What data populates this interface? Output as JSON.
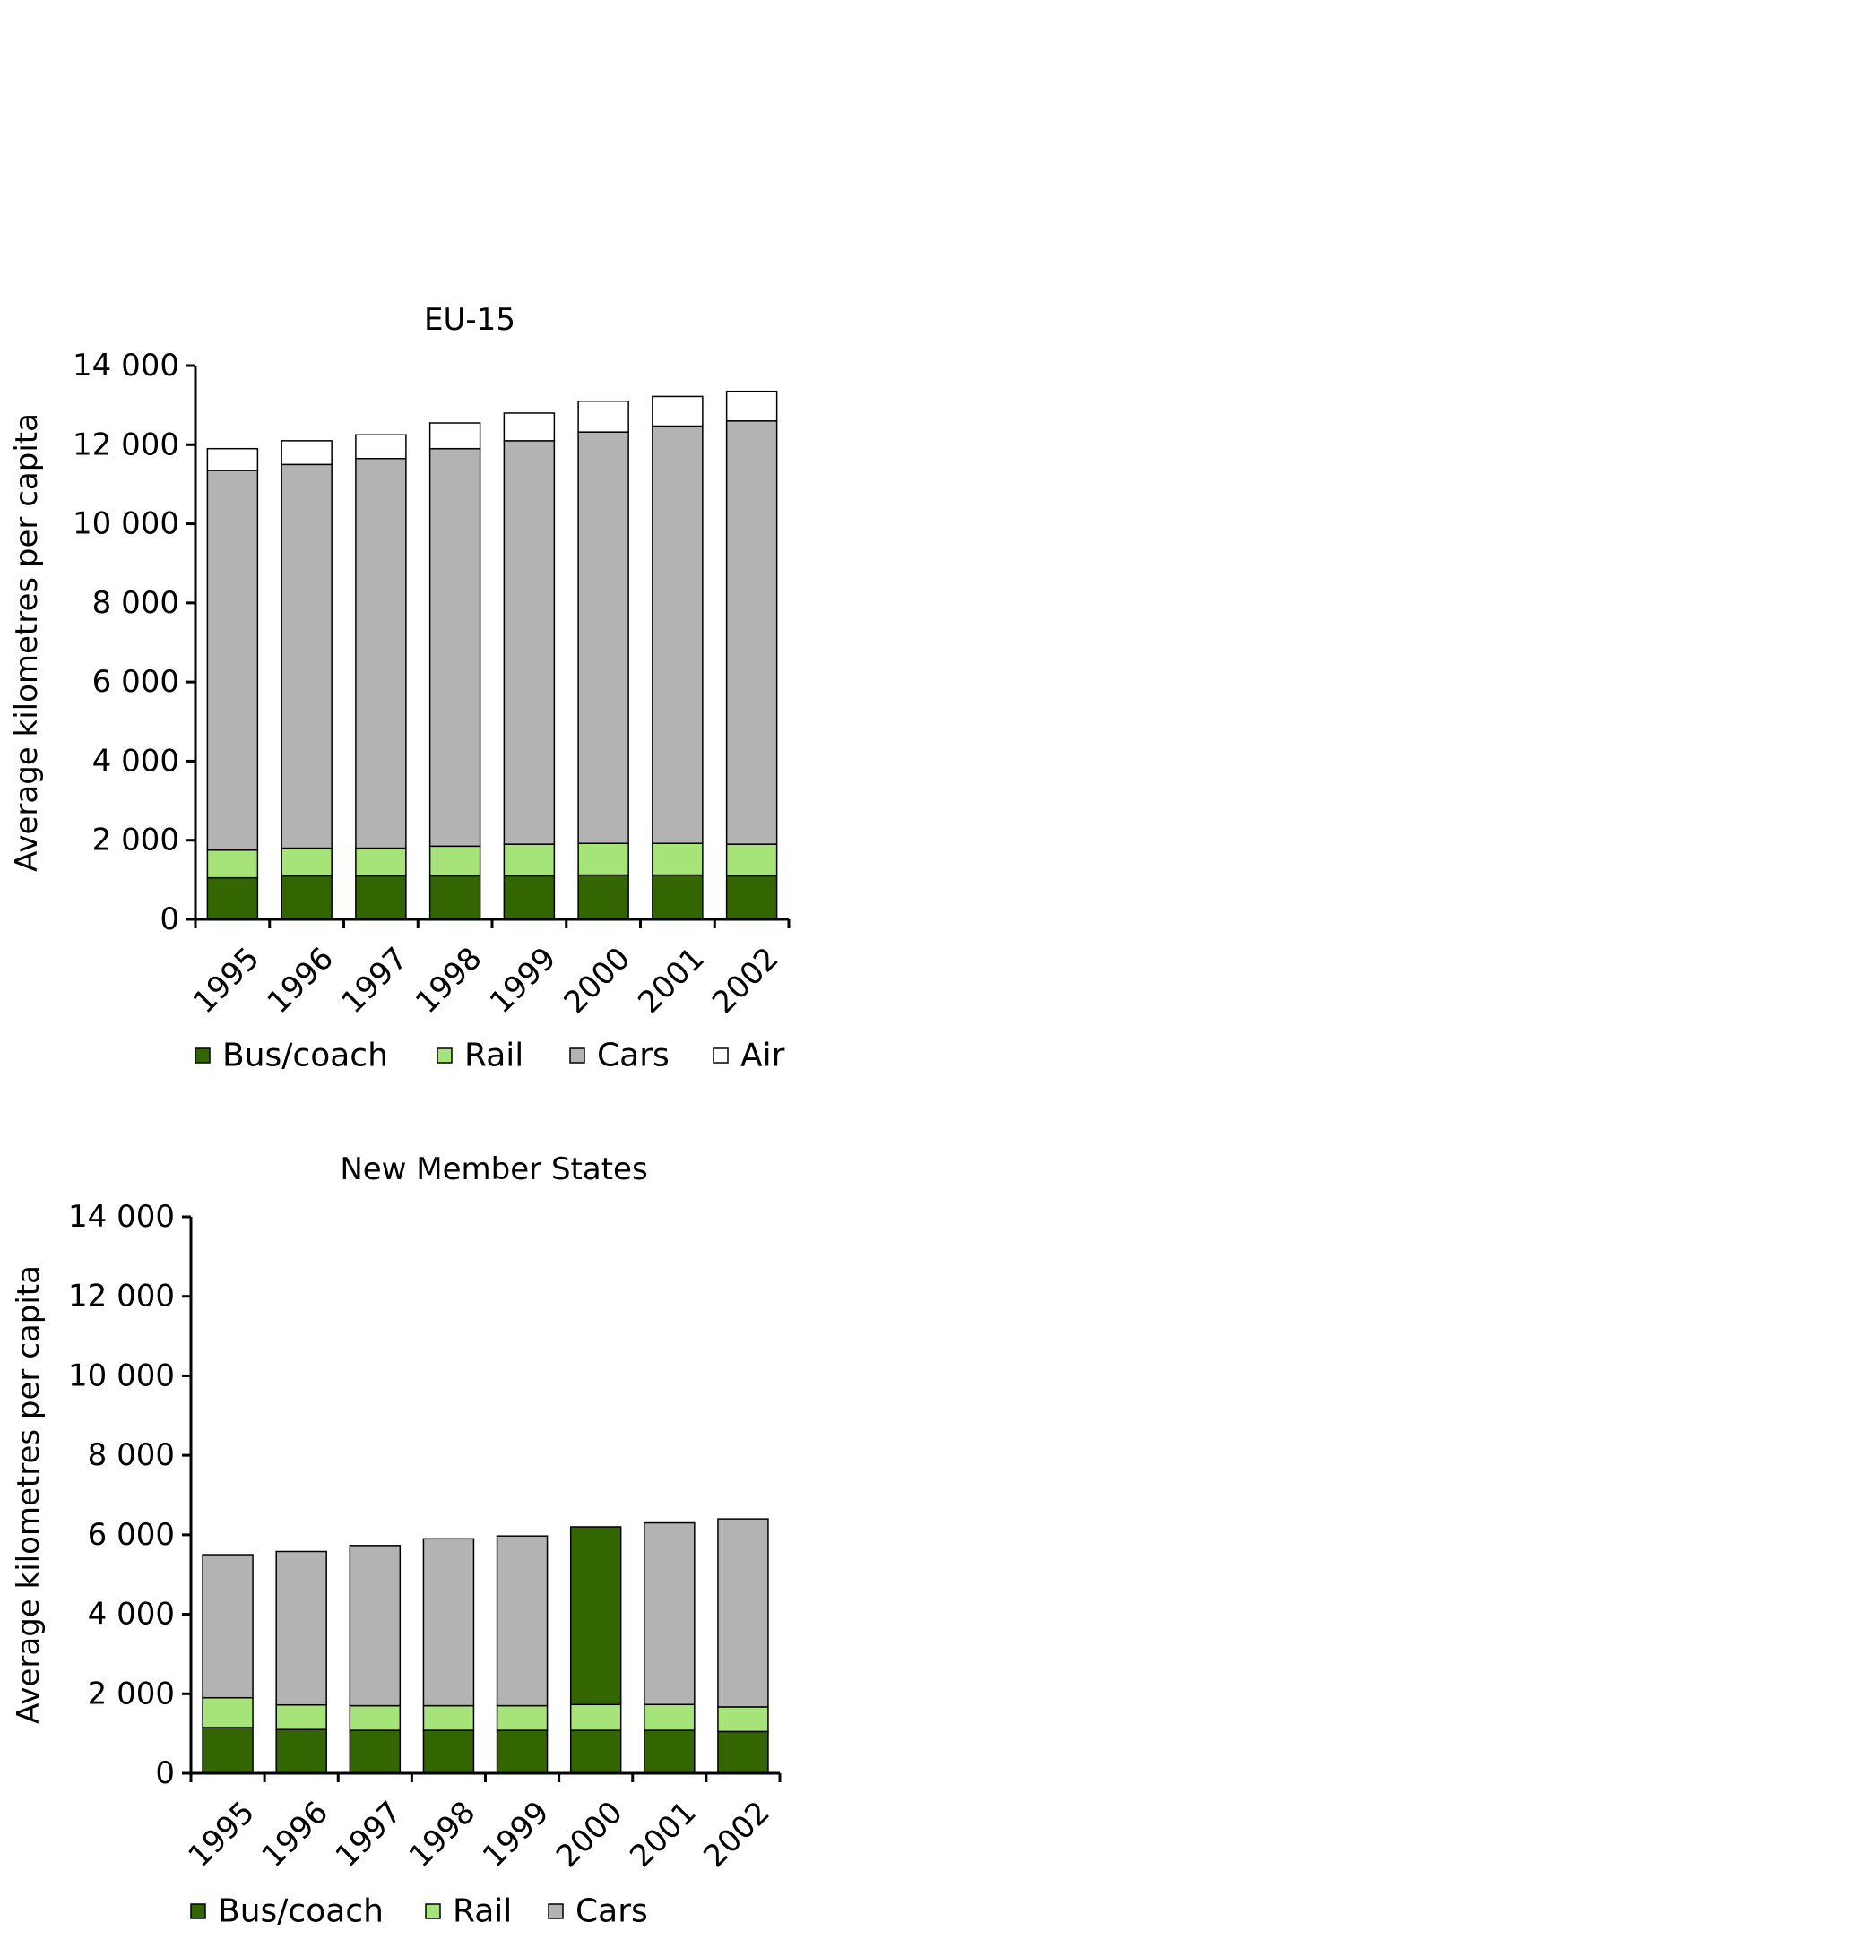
{
  "colors": {
    "Bus/coach": "#336600",
    "Rail": "#A6E47A",
    "Cars": "#B3B3B3",
    "Air": "#FFFFFF"
  },
  "chart_data": [
    {
      "type": "bar",
      "stacked": true,
      "title": "EU-15",
      "ylabel": "Average kilometres per capita",
      "xlabel": "",
      "ylim": [
        0,
        14000
      ],
      "yticks": [
        0,
        2000,
        4000,
        6000,
        8000,
        10000,
        12000,
        14000
      ],
      "ytick_labels": [
        "0",
        "2 000",
        "4 000",
        "6 000",
        "8 000",
        "10 000",
        "12 000",
        "14 000"
      ],
      "categories": [
        "1995",
        "1996",
        "1997",
        "1998",
        "1999",
        "2000",
        "2001",
        "2002"
      ],
      "series": [
        {
          "name": "Bus/coach",
          "values": [
            1050,
            1100,
            1100,
            1100,
            1100,
            1120,
            1120,
            1100
          ]
        },
        {
          "name": "Rail",
          "values": [
            700,
            700,
            700,
            750,
            800,
            800,
            800,
            800
          ]
        },
        {
          "name": "Cars",
          "values": [
            9600,
            9700,
            9850,
            10050,
            10200,
            10400,
            10550,
            10700
          ]
        },
        {
          "name": "Air",
          "values": [
            550,
            600,
            600,
            650,
            700,
            780,
            750,
            750
          ]
        }
      ],
      "legend": [
        "Bus/coach",
        "Rail",
        "Cars",
        "Air"
      ],
      "legend_position": "bottom"
    },
    {
      "type": "bar",
      "stacked": true,
      "title": "New Member States",
      "ylabel": "Average kilometres per capita",
      "xlabel": "",
      "ylim": [
        0,
        14000
      ],
      "yticks": [
        0,
        2000,
        4000,
        6000,
        8000,
        10000,
        12000,
        14000
      ],
      "ytick_labels": [
        "0",
        "2 000",
        "4 000",
        "6 000",
        "8 000",
        "10 000",
        "12 000",
        "14 000"
      ],
      "categories": [
        "1995",
        "1996",
        "1997",
        "1998",
        "1999",
        "2000",
        "2001",
        "2002"
      ],
      "series": [
        {
          "name": "Bus/coach",
          "values": [
            1150,
            1100,
            1080,
            1080,
            1080,
            1080,
            1080,
            1050
          ]
        },
        {
          "name": "Rail",
          "values": [
            750,
            620,
            620,
            620,
            620,
            650,
            650,
            620
          ]
        },
        {
          "name": "Cars",
          "values": [
            3600,
            3860,
            4030,
            4200,
            4270,
            4470,
            4570,
            4730
          ]
        }
      ],
      "series_fill_overrides": [
        {
          "series": "Cars",
          "category": "2000",
          "color": "#336600"
        }
      ],
      "legend": [
        "Bus/coach",
        "Rail",
        "Cars"
      ],
      "legend_position": "bottom"
    }
  ]
}
